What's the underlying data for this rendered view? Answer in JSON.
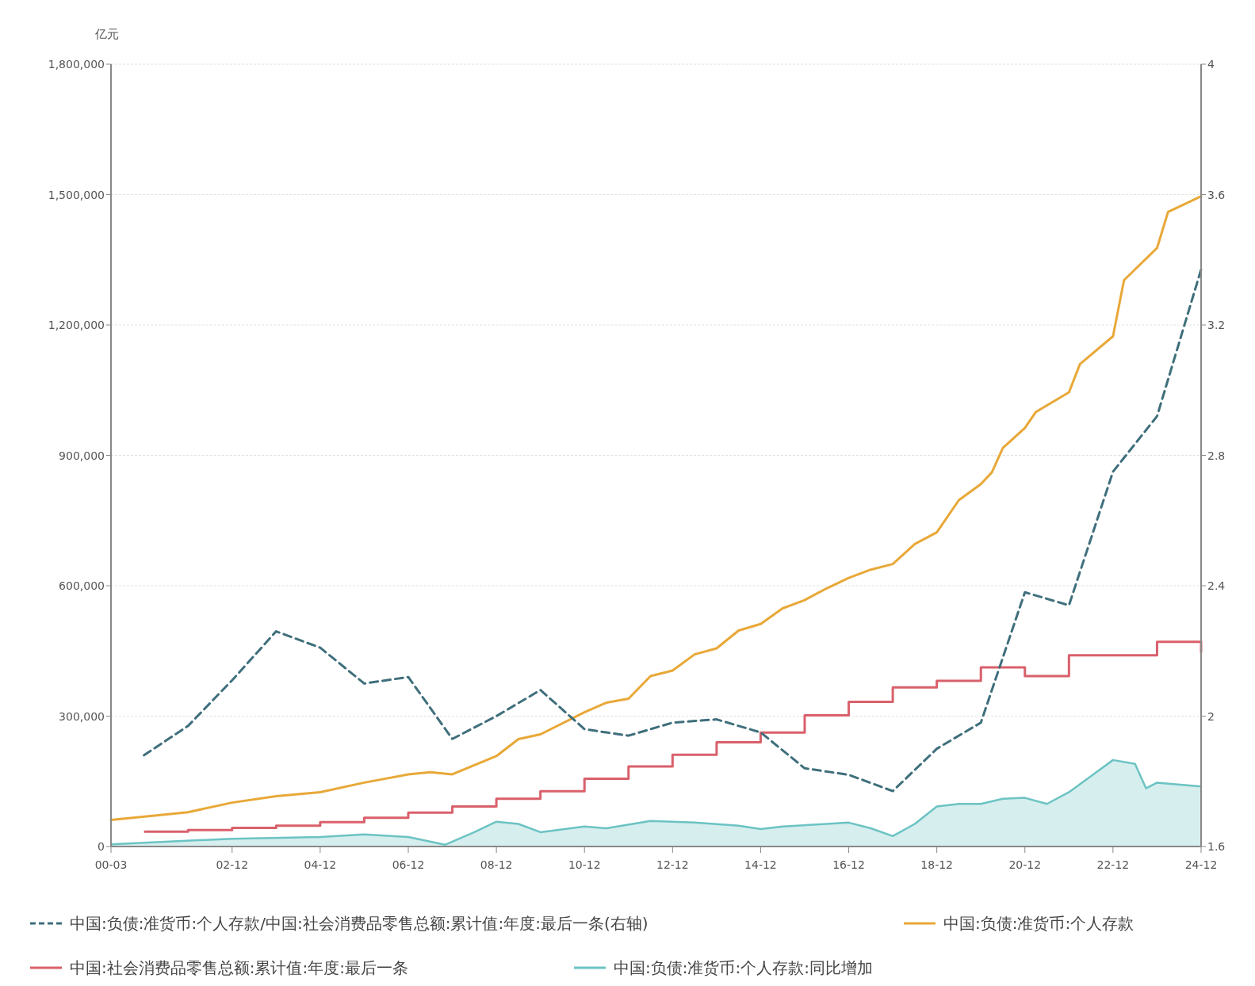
{
  "chart_data": {
    "type": "line",
    "ylabel": "亿元",
    "xlim": [
      "2000-03",
      "2024-12"
    ],
    "xticks": [
      {
        "value": "2000-03",
        "label": "00-03"
      },
      {
        "value": "2002-12",
        "label": "02-12"
      },
      {
        "value": "2004-12",
        "label": "04-12"
      },
      {
        "value": "2006-12",
        "label": "06-12"
      },
      {
        "value": "2008-12",
        "label": "08-12"
      },
      {
        "value": "2010-12",
        "label": "10-12"
      },
      {
        "value": "2012-12",
        "label": "12-12"
      },
      {
        "value": "2014-12",
        "label": "14-12"
      },
      {
        "value": "2016-12",
        "label": "16-12"
      },
      {
        "value": "2018-12",
        "label": "18-12"
      },
      {
        "value": "2020-12",
        "label": "20-12"
      },
      {
        "value": "2022-12",
        "label": "22-12"
      },
      {
        "value": "2024-12",
        "label": "24-12"
      }
    ],
    "ylim": [
      0,
      1800000
    ],
    "yticks": [
      {
        "value": 0,
        "label": "0"
      },
      {
        "value": 300000,
        "label": "300,000"
      },
      {
        "value": 600000,
        "label": "600,000"
      },
      {
        "value": 900000,
        "label": "900,000"
      },
      {
        "value": 1200000,
        "label": "1,200,000"
      },
      {
        "value": 1500000,
        "label": "1,500,000"
      },
      {
        "value": 1800000,
        "label": "1,800,000"
      }
    ],
    "y2lim": [
      1.6,
      4
    ],
    "y2ticks": [
      1.6,
      2,
      2.4,
      2.8,
      3.2,
      3.6,
      4
    ],
    "grid": "y",
    "legend": "bottom",
    "series": [
      {
        "name": "中国:负债:准货币:个人存款/中国:社会消费品零售总额:累计值:年度:最后一条(右轴)",
        "type": "line",
        "axis": "y2",
        "line_style": "dashed",
        "color": "#3f6f7c",
        "x": [
          "2000-12",
          "2001-12",
          "2002-12",
          "2003-12",
          "2004-12",
          "2005-12",
          "2006-12",
          "2007-12",
          "2008-12",
          "2009-12",
          "2010-12",
          "2011-12",
          "2012-12",
          "2013-12",
          "2014-12",
          "2015-12",
          "2016-12",
          "2017-12",
          "2018-12",
          "2019-12",
          "2020-12",
          "2021-12",
          "2022-12",
          "2023-12",
          "2024-12"
        ],
        "values": [
          1.88,
          1.97,
          2.11,
          2.26,
          2.21,
          2.1,
          2.12,
          1.93,
          2.0,
          2.08,
          1.96,
          1.94,
          1.98,
          1.99,
          1.95,
          1.84,
          1.82,
          1.77,
          1.9,
          1.98,
          2.38,
          2.34,
          2.75,
          2.92,
          3.37
        ]
      },
      {
        "name": "中国:负债:准货币:个人存款",
        "type": "line",
        "line_style": "solid",
        "color": "#e8a838",
        "x": [
          "2000-03",
          "2001-12",
          "2002-12",
          "2003-12",
          "2004-12",
          "2005-12",
          "2006-12",
          "2007-06",
          "2007-12",
          "2008-12",
          "2009-06",
          "2009-12",
          "2010-12",
          "2011-06",
          "2011-12",
          "2012-06",
          "2012-12",
          "2013-06",
          "2013-12",
          "2014-06",
          "2014-12",
          "2015-06",
          "2015-12",
          "2016-06",
          "2016-12",
          "2017-06",
          "2017-12",
          "2018-06",
          "2018-12",
          "2019-06",
          "2019-12",
          "2020-03",
          "2020-06",
          "2020-12",
          "2021-03",
          "2021-12",
          "2022-03",
          "2022-12",
          "2023-03",
          "2023-12",
          "2024-03",
          "2024-12"
        ],
        "values": [
          61000,
          79000,
          101000,
          116000,
          125000,
          147000,
          166000,
          171000,
          166000,
          208000,
          247000,
          258000,
          309000,
          331000,
          340000,
          392000,
          405000,
          442000,
          456000,
          497000,
          512000,
          548000,
          567000,
          594000,
          618000,
          637000,
          650000,
          696000,
          723000,
          797000,
          834000,
          861000,
          917000,
          963000,
          1000000,
          1045000,
          1110000,
          1174000,
          1303000,
          1377000,
          1460000,
          1496000
        ]
      },
      {
        "name": "中国:社会消费品零售总额:累计值:年度:最后一条",
        "type": "step",
        "line_style": "solid",
        "color": "#d9606b",
        "x": [
          "2000-12",
          "2001-12",
          "2002-12",
          "2003-12",
          "2004-12",
          "2005-12",
          "2006-12",
          "2007-12",
          "2008-12",
          "2009-12",
          "2010-12",
          "2011-12",
          "2012-12",
          "2013-12",
          "2014-12",
          "2015-12",
          "2016-12",
          "2017-12",
          "2018-12",
          "2019-12",
          "2020-12",
          "2021-12",
          "2022-12",
          "2023-12",
          "2024-12"
        ],
        "values": [
          34000,
          38000,
          43000,
          48000,
          56000,
          66000,
          78000,
          92000,
          110000,
          127000,
          156000,
          184000,
          211000,
          240000,
          262000,
          302000,
          333000,
          366000,
          381000,
          412000,
          392000,
          440000,
          440000,
          471000,
          446000
        ]
      },
      {
        "name": "中国:负债:准货币:个人存款:同比增加",
        "type": "area",
        "line_style": "solid",
        "color": "#6cc3c3",
        "x": [
          "2000-03",
          "2002-12",
          "2004-12",
          "2005-12",
          "2006-12",
          "2007-10",
          "2008-06",
          "2008-12",
          "2009-06",
          "2009-12",
          "2010-12",
          "2011-06",
          "2012-06",
          "2013-06",
          "2014-06",
          "2014-12",
          "2015-06",
          "2016-06",
          "2016-12",
          "2017-06",
          "2017-12",
          "2018-06",
          "2018-12",
          "2019-06",
          "2019-12",
          "2020-06",
          "2020-12",
          "2021-06",
          "2021-12",
          "2022-06",
          "2022-12",
          "2023-06",
          "2023-09",
          "2023-12",
          "2024-12"
        ],
        "values": [
          5000,
          18000,
          22000,
          28000,
          22000,
          4000,
          33000,
          57000,
          52000,
          33000,
          46000,
          42000,
          59000,
          55000,
          48000,
          40000,
          46000,
          52000,
          55000,
          42000,
          24000,
          52000,
          92000,
          98000,
          98000,
          110000,
          112000,
          98000,
          125000,
          162000,
          199000,
          190000,
          134000,
          147000,
          138000
        ]
      }
    ]
  }
}
